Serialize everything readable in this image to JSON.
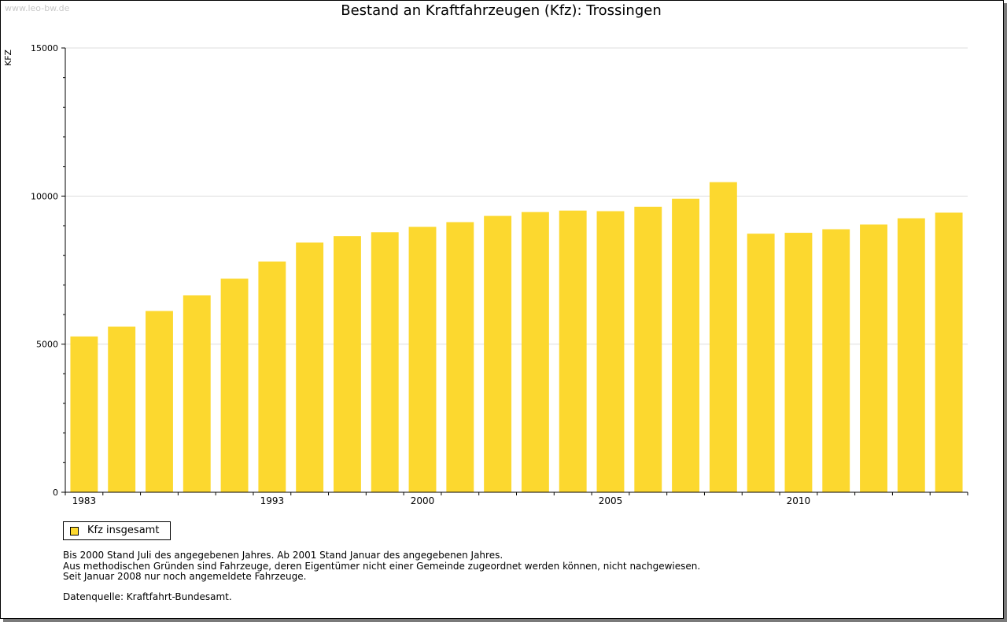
{
  "watermark": "www.leo-bw.de",
  "chart_data": {
    "type": "bar",
    "title": "Bestand an Kraftfahrzeugen (Kfz): Trossingen",
    "ylabel": "KFZ",
    "xlabel": "",
    "ylim": [
      0,
      15000
    ],
    "y_ticks": [
      "0",
      "5000",
      "10000",
      "15000"
    ],
    "x_tick_labels": [
      {
        "year": 1983,
        "label": "1983"
      },
      {
        "year": 1993,
        "label": "1993"
      },
      {
        "year": 2000,
        "label": "2000"
      },
      {
        "year": 2005,
        "label": "2005"
      },
      {
        "year": 2010,
        "label": "2010"
      }
    ],
    "categories": [
      1983,
      1985,
      1987,
      1989,
      1991,
      1993,
      1995,
      1997,
      1999,
      2000,
      2001,
      2002,
      2003,
      2004,
      2005,
      2006,
      2007,
      2008,
      2009,
      2010,
      2011,
      2012,
      2013,
      2014
    ],
    "series": [
      {
        "name": "Kfz insgesamt",
        "color": "#fcd82f",
        "values": [
          5260,
          5590,
          6120,
          6650,
          7210,
          7790,
          8430,
          8650,
          8780,
          8960,
          9120,
          9330,
          9460,
          9510,
          9490,
          9640,
          9910,
          10470,
          8730,
          8760,
          8880,
          9040,
          9250,
          9440
        ]
      }
    ],
    "grid": true,
    "legend_position": "bottom-left"
  },
  "legend": {
    "label": "Kfz insgesamt"
  },
  "notes": [
    "Bis 2000 Stand Juli des angegebenen Jahres. Ab 2001 Stand Januar des angegebenen Jahres.",
    "Aus methodischen Gründen sind Fahrzeuge, deren Eigentümer nicht einer Gemeinde zugeordnet werden können, nicht nachgewiesen.",
    "Seit Januar 2008 nur noch angemeldete Fahrzeuge."
  ],
  "source": "Datenquelle: Kraftfahrt-Bundesamt."
}
